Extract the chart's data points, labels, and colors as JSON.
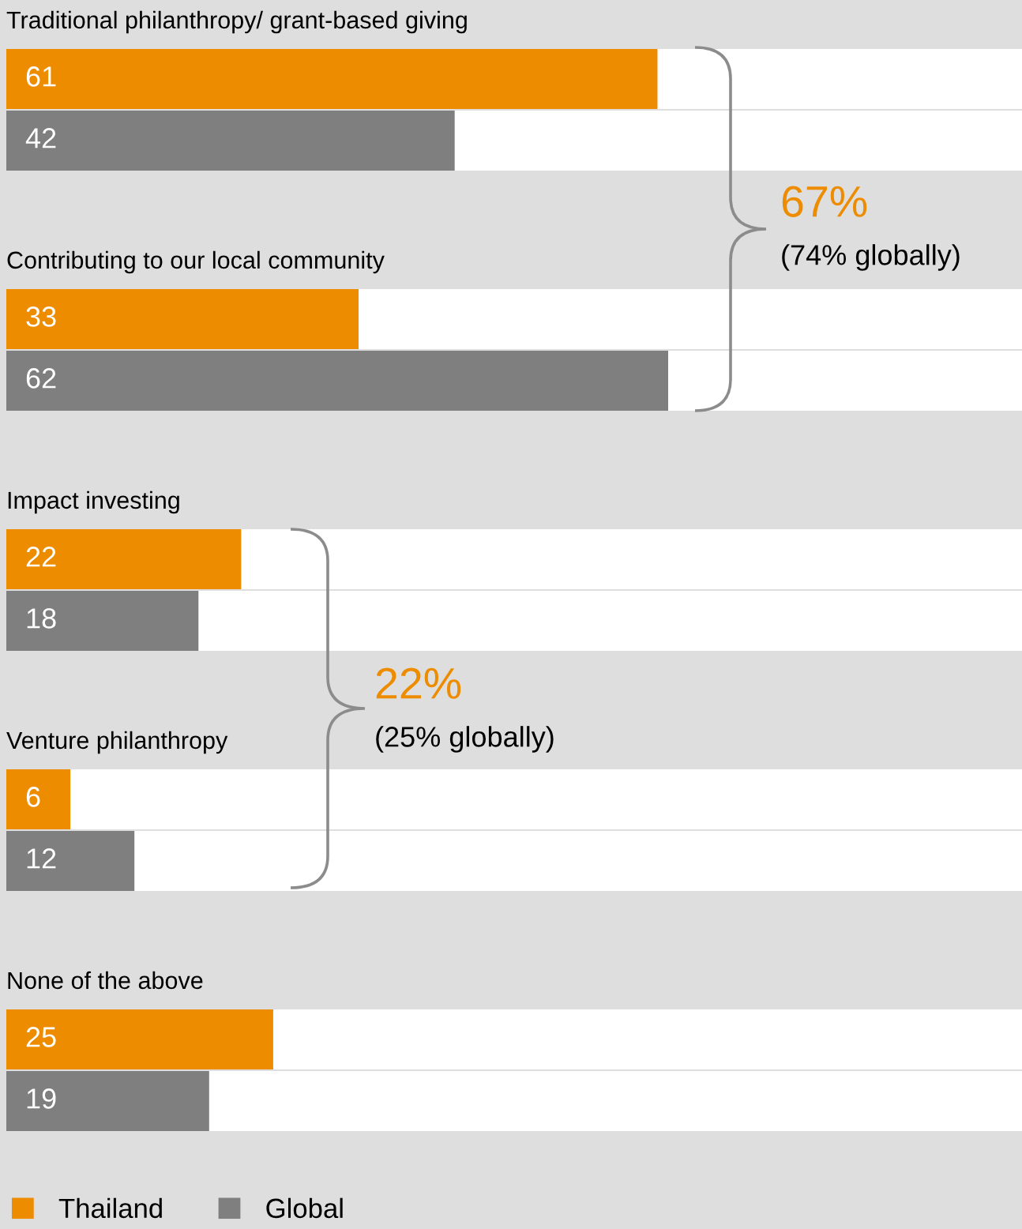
{
  "chart_data": {
    "type": "bar",
    "orientation": "horizontal",
    "categories": [
      "Traditional philanthropy/ grant-based giving",
      "Contributing to our local community",
      "Impact investing",
      "Venture philanthropy",
      "None of the above"
    ],
    "series": [
      {
        "name": "Thailand",
        "color": "#ee8c00",
        "values": [
          61,
          33,
          22,
          6,
          25
        ]
      },
      {
        "name": "Global",
        "color": "#7f7f7f",
        "values": [
          42,
          62,
          18,
          12,
          19
        ]
      }
    ],
    "data_labels": true,
    "grid": false,
    "legend": "bottom left",
    "annotations": [
      "67%",
      "(74% globally)",
      "22%",
      "(25% globally)"
    ]
  }
}
